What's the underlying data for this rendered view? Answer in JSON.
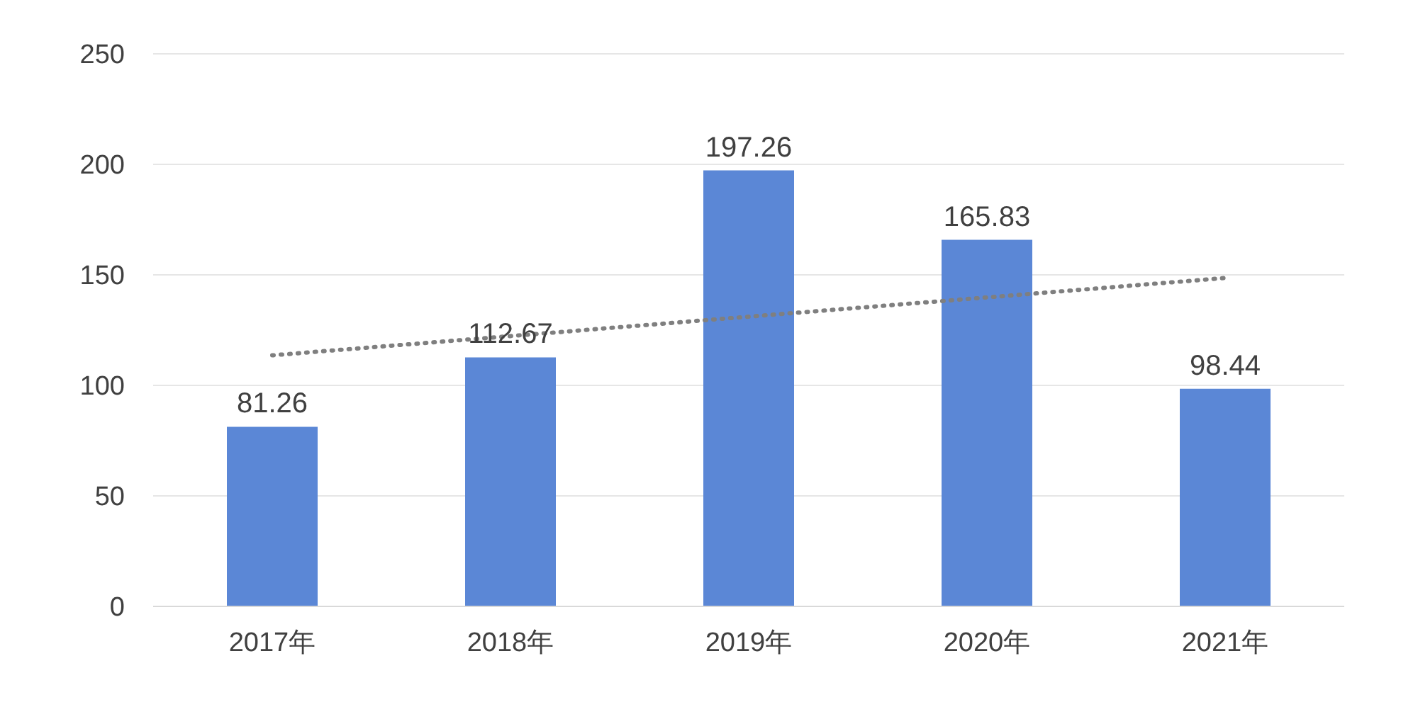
{
  "chart_data": {
    "type": "bar",
    "categories": [
      "2017年",
      "2018年",
      "2019年",
      "2020年",
      "2021年"
    ],
    "series": [
      {
        "color": "#5b87d6",
        "values": [
          81.26,
          112.67,
          197.26,
          165.83,
          98.44
        ],
        "data_labels": true
      },
      {
        "type": "line",
        "color": "#7f7f7f",
        "values": [
          113.6,
          122.3,
          131.1,
          139.8,
          148.6
        ],
        "line_style": "dotted",
        "marker": "none"
      }
    ],
    "ylim": [
      0,
      250
    ],
    "yticks": [
      0,
      50,
      100,
      150,
      200,
      250
    ],
    "grid": "y",
    "legend": false
  }
}
